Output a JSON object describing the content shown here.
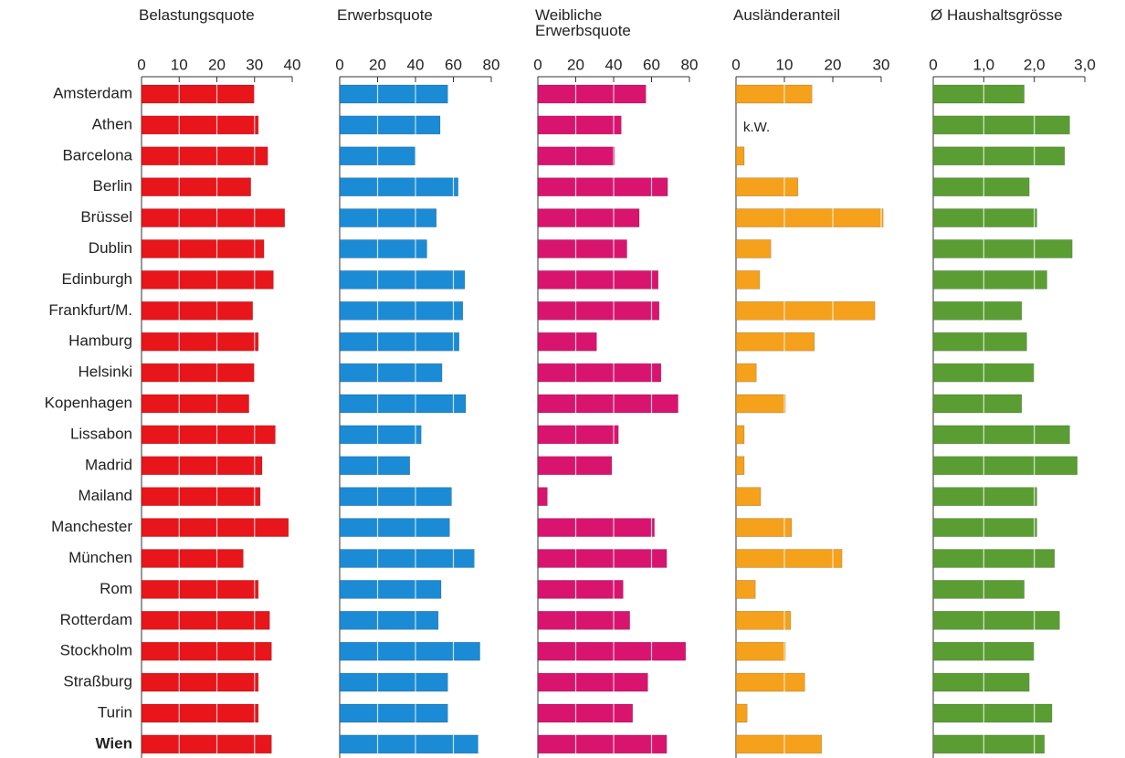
{
  "chart_data": [
    {
      "type": "bar",
      "title": "Belastungsquote",
      "color": "#e8151b",
      "categories": [
        "Amsterdam",
        "Athen",
        "Barcelona",
        "Berlin",
        "Brüssel",
        "Dublin",
        "Edinburgh",
        "Frankfurt/M.",
        "Hamburg",
        "Helsinki",
        "Kopenhagen",
        "Lissabon",
        "Madrid",
        "Mailand",
        "Manchester",
        "München",
        "Rom",
        "Rotterdam",
        "Stockholm",
        "Straßburg",
        "Turin",
        "Wien"
      ],
      "values": [
        30,
        31,
        33.5,
        29,
        38,
        32.5,
        35,
        29.5,
        31,
        30,
        28.5,
        35.5,
        32,
        31.5,
        39,
        27,
        31,
        34,
        34.5,
        31,
        31,
        34.5
      ],
      "xlim": [
        0,
        40
      ],
      "xticks": [
        0,
        10,
        20,
        30,
        40
      ]
    },
    {
      "type": "bar",
      "title": "Erwerbsquote",
      "color": "#1b8bd6",
      "values": [
        57,
        53,
        40,
        62.5,
        51,
        46,
        66,
        65,
        63,
        54,
        66.5,
        43,
        37,
        59,
        58,
        71,
        53.5,
        52,
        74,
        57,
        57,
        73
      ],
      "xlim": [
        0,
        80
      ],
      "xticks": [
        0,
        20,
        40,
        60,
        80
      ]
    },
    {
      "type": "bar",
      "title": "Weibliche Erwerbsquote",
      "color": "#d9146f",
      "values": [
        57,
        44,
        40.5,
        68.5,
        53.5,
        47,
        63.5,
        64,
        31,
        65,
        74,
        42.5,
        39,
        5,
        61.5,
        68,
        45,
        48.5,
        78,
        58,
        50,
        68
      ],
      "xlim": [
        0,
        80
      ],
      "xticks": [
        0,
        20,
        40,
        60,
        80
      ]
    },
    {
      "type": "bar",
      "title": "Ausländeranteil",
      "color": "#f5a11c",
      "annotation": "k.W.",
      "values": [
        15.7,
        null,
        1.7,
        12.8,
        30.4,
        7.2,
        4.9,
        28.7,
        16.2,
        4.2,
        10.2,
        1.7,
        1.7,
        5.1,
        11.5,
        21.9,
        4,
        11.3,
        10.2,
        14.2,
        2.3,
        17.7
      ],
      "xlim": [
        0,
        30
      ],
      "xticks": [
        0,
        10,
        20,
        30
      ]
    },
    {
      "type": "bar",
      "title": "Ø Haushaltsgrösse",
      "color": "#5a9e33",
      "values": [
        1.8,
        2.7,
        2.6,
        1.9,
        2.05,
        2.75,
        2.25,
        1.75,
        1.85,
        2.0,
        1.75,
        2.7,
        2.85,
        2.05,
        2.05,
        2.4,
        1.8,
        2.5,
        2.0,
        1.9,
        2.35,
        2.2
      ],
      "xlim": [
        0,
        3
      ],
      "xticks": [
        0,
        {
          "value": 1,
          "label": "1,0"
        },
        {
          "value": 2,
          "label": "2,0"
        },
        {
          "value": 3,
          "label": "3,0"
        }
      ]
    }
  ]
}
